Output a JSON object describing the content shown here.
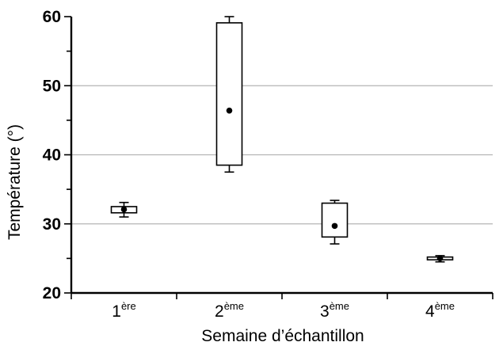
{
  "chart_data": {
    "type": "box",
    "xlabel": "Semaine d’échantillon",
    "ylabel": "Température (°)",
    "ylim": [
      20,
      60
    ],
    "yticks": [
      "20",
      "30",
      "40",
      "50",
      "60"
    ],
    "grid": "horizontal at 30, 40, 50",
    "categories": [
      {
        "base": "1",
        "sup": "ère"
      },
      {
        "base": "2",
        "sup": "ème"
      },
      {
        "base": "3",
        "sup": "ème"
      },
      {
        "base": "4",
        "sup": "ème"
      }
    ],
    "boxes": [
      {
        "whisker_low": 31.0,
        "q1": 31.6,
        "median": 32.1,
        "q3": 32.5,
        "whisker_high": 33.1
      },
      {
        "whisker_low": 37.5,
        "q1": 38.5,
        "median": 46.4,
        "q3": 59.1,
        "whisker_high": 60.0
      },
      {
        "whisker_low": 27.1,
        "q1": 28.1,
        "median": 29.7,
        "q3": 33.0,
        "whisker_high": 33.4
      },
      {
        "whisker_low": 24.5,
        "q1": 24.8,
        "median": 25.0,
        "q3": 25.2,
        "whisker_high": 25.4
      }
    ]
  }
}
